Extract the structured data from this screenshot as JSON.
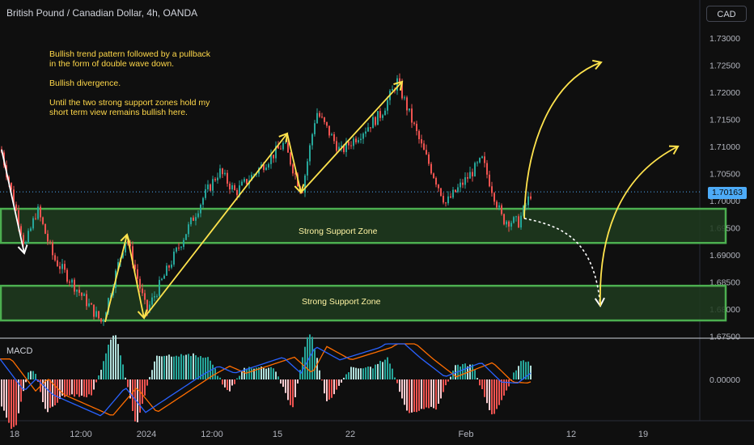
{
  "chart_data": {
    "type": "line",
    "title": "British Pound / Canadian Dollar, 4h, OANDA",
    "currency": "CAD",
    "price_axis_ticks": [
      "1.73000",
      "1.72500",
      "1.72000",
      "1.71500",
      "1.71000",
      "1.70500",
      "1.70000",
      "1.69500",
      "1.69000",
      "1.68500",
      "1.68000",
      "1.67500"
    ],
    "x_ticks": [
      "18",
      "12:00",
      "2024",
      "12:00",
      "15",
      "22",
      "Feb",
      "12",
      "19"
    ],
    "last_price": "1.70163",
    "ylim": [
      1.6735,
      1.7335
    ],
    "zones": [
      {
        "label": "Strong Support Zone",
        "low": 1.6922,
        "high": 1.6985
      },
      {
        "label": "Strong Support Zone",
        "low": 1.6779,
        "high": 1.6843
      }
    ],
    "path_points": [
      {
        "t": "Dec 18",
        "price": 1.7095
      },
      {
        "t": "Dec 19",
        "price": 1.6915
      },
      {
        "t": "Dec 20",
        "price": 1.6985
      },
      {
        "t": "Dec 26",
        "price": 1.6785
      },
      {
        "t": "Dec 28",
        "price": 1.6935
      },
      {
        "t": "Dec 29",
        "price": 1.6795
      },
      {
        "t": "Jan 12",
        "price": 1.7105
      },
      {
        "t": "Jan 17",
        "price": 1.7015
      },
      {
        "t": "Jan 25",
        "price": 1.722
      },
      {
        "t": "Feb 02",
        "price": 1.6995
      },
      {
        "t": "Feb 07",
        "price": 1.6955
      },
      {
        "t": "Feb 08",
        "price": 1.7016
      }
    ],
    "macd_axis_label": "0.00000",
    "indicator": "MACD",
    "grid": false
  },
  "annotation": {
    "lines": [
      "Bullish trend pattern followed by a pullback",
      "in the form of double wave down.",
      "",
      "Bullish divergence.",
      "",
      "Until the two strong support zones hold my",
      "short term view remains bullish here."
    ]
  },
  "colors": {
    "up": "#26a69a",
    "down": "#ef5350",
    "zone_border": "#4caf50",
    "zone_fill": "#1e3b1e",
    "arrow": "#ffe34d",
    "macd": "#2962ff",
    "signal": "#ff6d00"
  }
}
